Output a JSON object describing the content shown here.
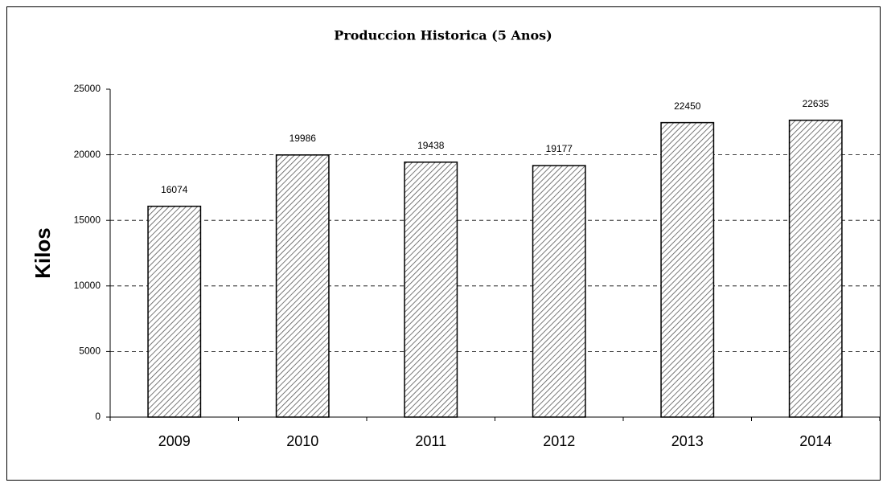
{
  "chart_data": {
    "type": "bar",
    "title": "Produccion Historica (5 Anos)",
    "y_label": "Kilos",
    "categories": [
      "2009",
      "2010",
      "2011",
      "2012",
      "2013",
      "2014"
    ],
    "values": [
      16074,
      19986,
      19438,
      19177,
      22450,
      22635
    ],
    "ylim": [
      0,
      25000
    ],
    "yticks": [
      0,
      5000,
      10000,
      15000,
      20000,
      25000
    ],
    "grid": true
  }
}
